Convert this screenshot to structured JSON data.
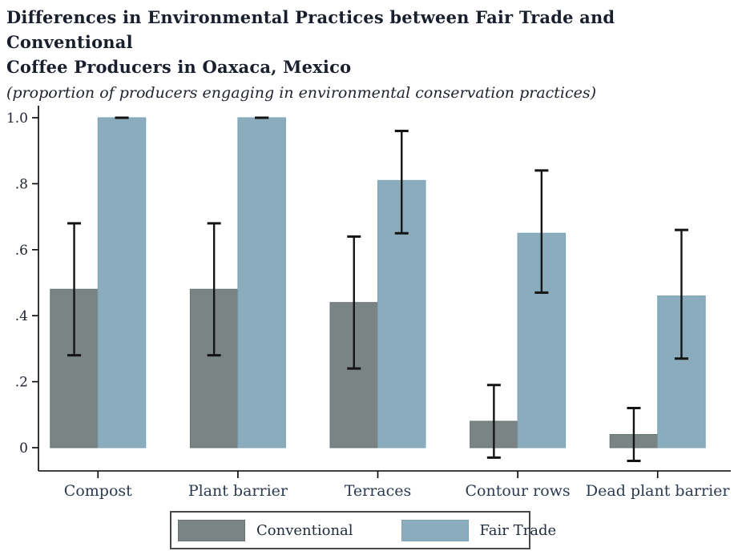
{
  "header": {
    "title_line1": "Differences in Environmental Practices between Fair Trade and Conventional",
    "title_line2": "Coffee Producers in Oaxaca, Mexico",
    "subtitle": "(proportion of producers engaging in environmental conservation practices)"
  },
  "chart_data": {
    "type": "bar",
    "title": "Differences in Environmental Practices between Fair Trade and Conventional Coffee Producers in Oaxaca, Mexico",
    "subtitle": "(proportion of producers engaging in environmental conservation practices)",
    "categories": [
      "Compost",
      "Plant barrier",
      "Terraces",
      "Contour rows",
      "Dead plant barrier"
    ],
    "series": [
      {
        "name": "Conventional",
        "color": "#7a8484",
        "edge_color": "#687272",
        "values": [
          0.48,
          0.48,
          0.44,
          0.08,
          0.04
        ],
        "ci_low": [
          0.28,
          0.28,
          0.24,
          -0.03,
          -0.04
        ],
        "ci_high": [
          0.68,
          0.68,
          0.64,
          0.19,
          0.12
        ]
      },
      {
        "name": "Fair Trade",
        "color": "#8aacbd",
        "edge_color": "#7ba3b6",
        "values": [
          1.0,
          1.0,
          0.81,
          0.65,
          0.46
        ],
        "ci_low": [
          1.0,
          1.0,
          0.65,
          0.47,
          0.27
        ],
        "ci_high": [
          1.0,
          1.0,
          0.96,
          0.84,
          0.66
        ]
      }
    ],
    "xlabel": "",
    "ylabel": "",
    "yticks": [
      0,
      0.2,
      0.4,
      0.6,
      0.8,
      1.0
    ],
    "ytick_labels": [
      "0",
      ".2",
      ".4",
      ".6",
      ".8",
      "1.0"
    ],
    "ylim": [
      -0.07,
      1.04
    ],
    "grid": false,
    "error_bars": true,
    "error_bar_color": "#141414",
    "axis_color": "#000000",
    "tick_label_color": "#20242f",
    "category_label_color": "#2b3a52",
    "legend_position": "bottom"
  }
}
